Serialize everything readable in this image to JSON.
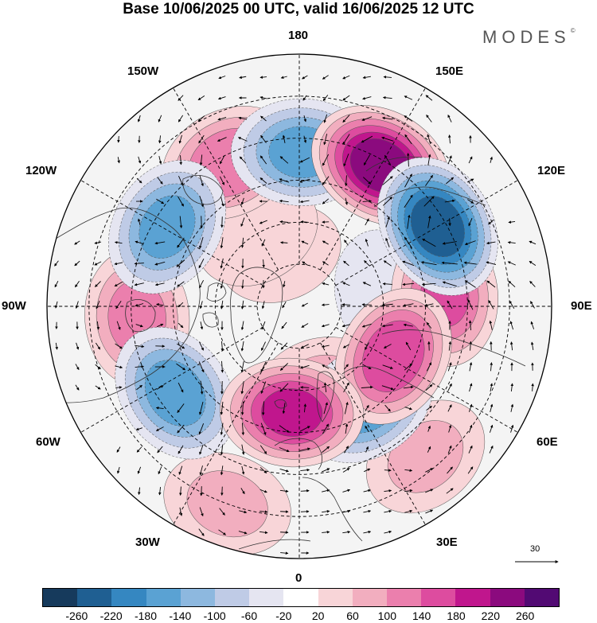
{
  "title": "Base 10/06/2025 00 UTC, valid 16/06/2025 12 UTC",
  "brand": "MODES",
  "brand_mark": "©",
  "longitude_labels": {
    "n180": "180",
    "e150": "150E",
    "e120": "120E",
    "e90": "90E",
    "e60": "60E",
    "e30": "30E",
    "s0": "0",
    "w30": "30W",
    "w60": "60W",
    "w90": "90W",
    "w120": "120W",
    "w150": "150W"
  },
  "reference_vector": {
    "label": "30"
  },
  "colorbar": {
    "colors": [
      "#163a5c",
      "#1f5f92",
      "#3587c1",
      "#5aa2d3",
      "#8db8df",
      "#bfcbe6",
      "#e5e5f1",
      "#ffffff",
      "#f8d5d8",
      "#f2aebf",
      "#eb7fad",
      "#dd4c9f",
      "#c0168d",
      "#8b0a7e",
      "#520a73"
    ],
    "ticks": [
      "-260",
      "-220",
      "-180",
      "-140",
      "-100",
      "-60",
      "-20",
      "20",
      "60",
      "100",
      "140",
      "180",
      "220",
      "260"
    ]
  },
  "anomaly_centers": [
    {
      "lon": 179,
      "colat": 55,
      "value": -150
    },
    {
      "lon": 150,
      "colat": 58,
      "value": 250
    },
    {
      "lon": 120,
      "colat": 57,
      "value": -250
    },
    {
      "lon": 94,
      "colat": 52,
      "value": 140
    },
    {
      "lon": 62,
      "colat": 38,
      "value": 170
    },
    {
      "lon": 35,
      "colat": 42,
      "value": -160
    },
    {
      "lon": -4,
      "colat": 38,
      "value": 190
    },
    {
      "lon": -55,
      "colat": 54,
      "value": -160
    },
    {
      "lon": -86,
      "colat": 58,
      "value": 110
    },
    {
      "lon": -121,
      "colat": 55,
      "value": -150
    },
    {
      "lon": -154,
      "colat": 57,
      "value": 130
    },
    {
      "lon": -150,
      "colat": 30,
      "value": 50
    },
    {
      "lon": -160,
      "colat": 20,
      "value": 40
    },
    {
      "lon": 15,
      "colat": 30,
      "value": 60
    },
    {
      "lon": 100,
      "colat": 30,
      "value": -40
    },
    {
      "lon": -20,
      "colat": 75,
      "value": 60
    },
    {
      "lon": 40,
      "colat": 70,
      "value": 60
    }
  ]
}
